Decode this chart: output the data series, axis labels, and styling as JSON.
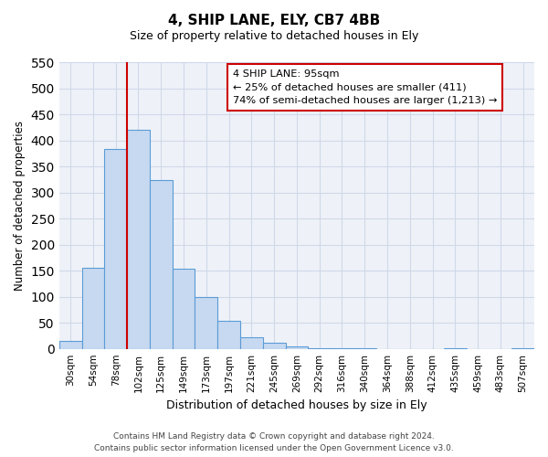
{
  "title": "4, SHIP LANE, ELY, CB7 4BB",
  "subtitle": "Size of property relative to detached houses in Ely",
  "xlabel": "Distribution of detached houses by size in Ely",
  "ylabel": "Number of detached properties",
  "categories": [
    "30sqm",
    "54sqm",
    "78sqm",
    "102sqm",
    "125sqm",
    "149sqm",
    "173sqm",
    "197sqm",
    "221sqm",
    "245sqm",
    "269sqm",
    "292sqm",
    "316sqm",
    "340sqm",
    "364sqm",
    "388sqm",
    "412sqm",
    "435sqm",
    "459sqm",
    "483sqm",
    "507sqm"
  ],
  "values": [
    15,
    155,
    383,
    420,
    323,
    153,
    100,
    54,
    22,
    12,
    5,
    2,
    1,
    1,
    0,
    0,
    0,
    1,
    0,
    0,
    1
  ],
  "bar_color": "#c6d9f1",
  "bar_edge_color": "#5b9bd5",
  "vline_x_index": 3,
  "vline_color": "#cc0000",
  "ylim": [
    0,
    550
  ],
  "yticks": [
    0,
    50,
    100,
    150,
    200,
    250,
    300,
    350,
    400,
    450,
    500,
    550
  ],
  "annotation_title": "4 SHIP LANE: 95sqm",
  "annotation_line1": "← 25% of detached houses are smaller (411)",
  "annotation_line2": "74% of semi-detached houses are larger (1,213) →",
  "annotation_box_color": "#ffffff",
  "annotation_box_edge": "#cc0000",
  "footer_line1": "Contains HM Land Registry data © Crown copyright and database right 2024.",
  "footer_line2": "Contains public sector information licensed under the Open Government Licence v3.0.",
  "grid_color": "#d0d8e8",
  "background_color": "#eef2f8"
}
